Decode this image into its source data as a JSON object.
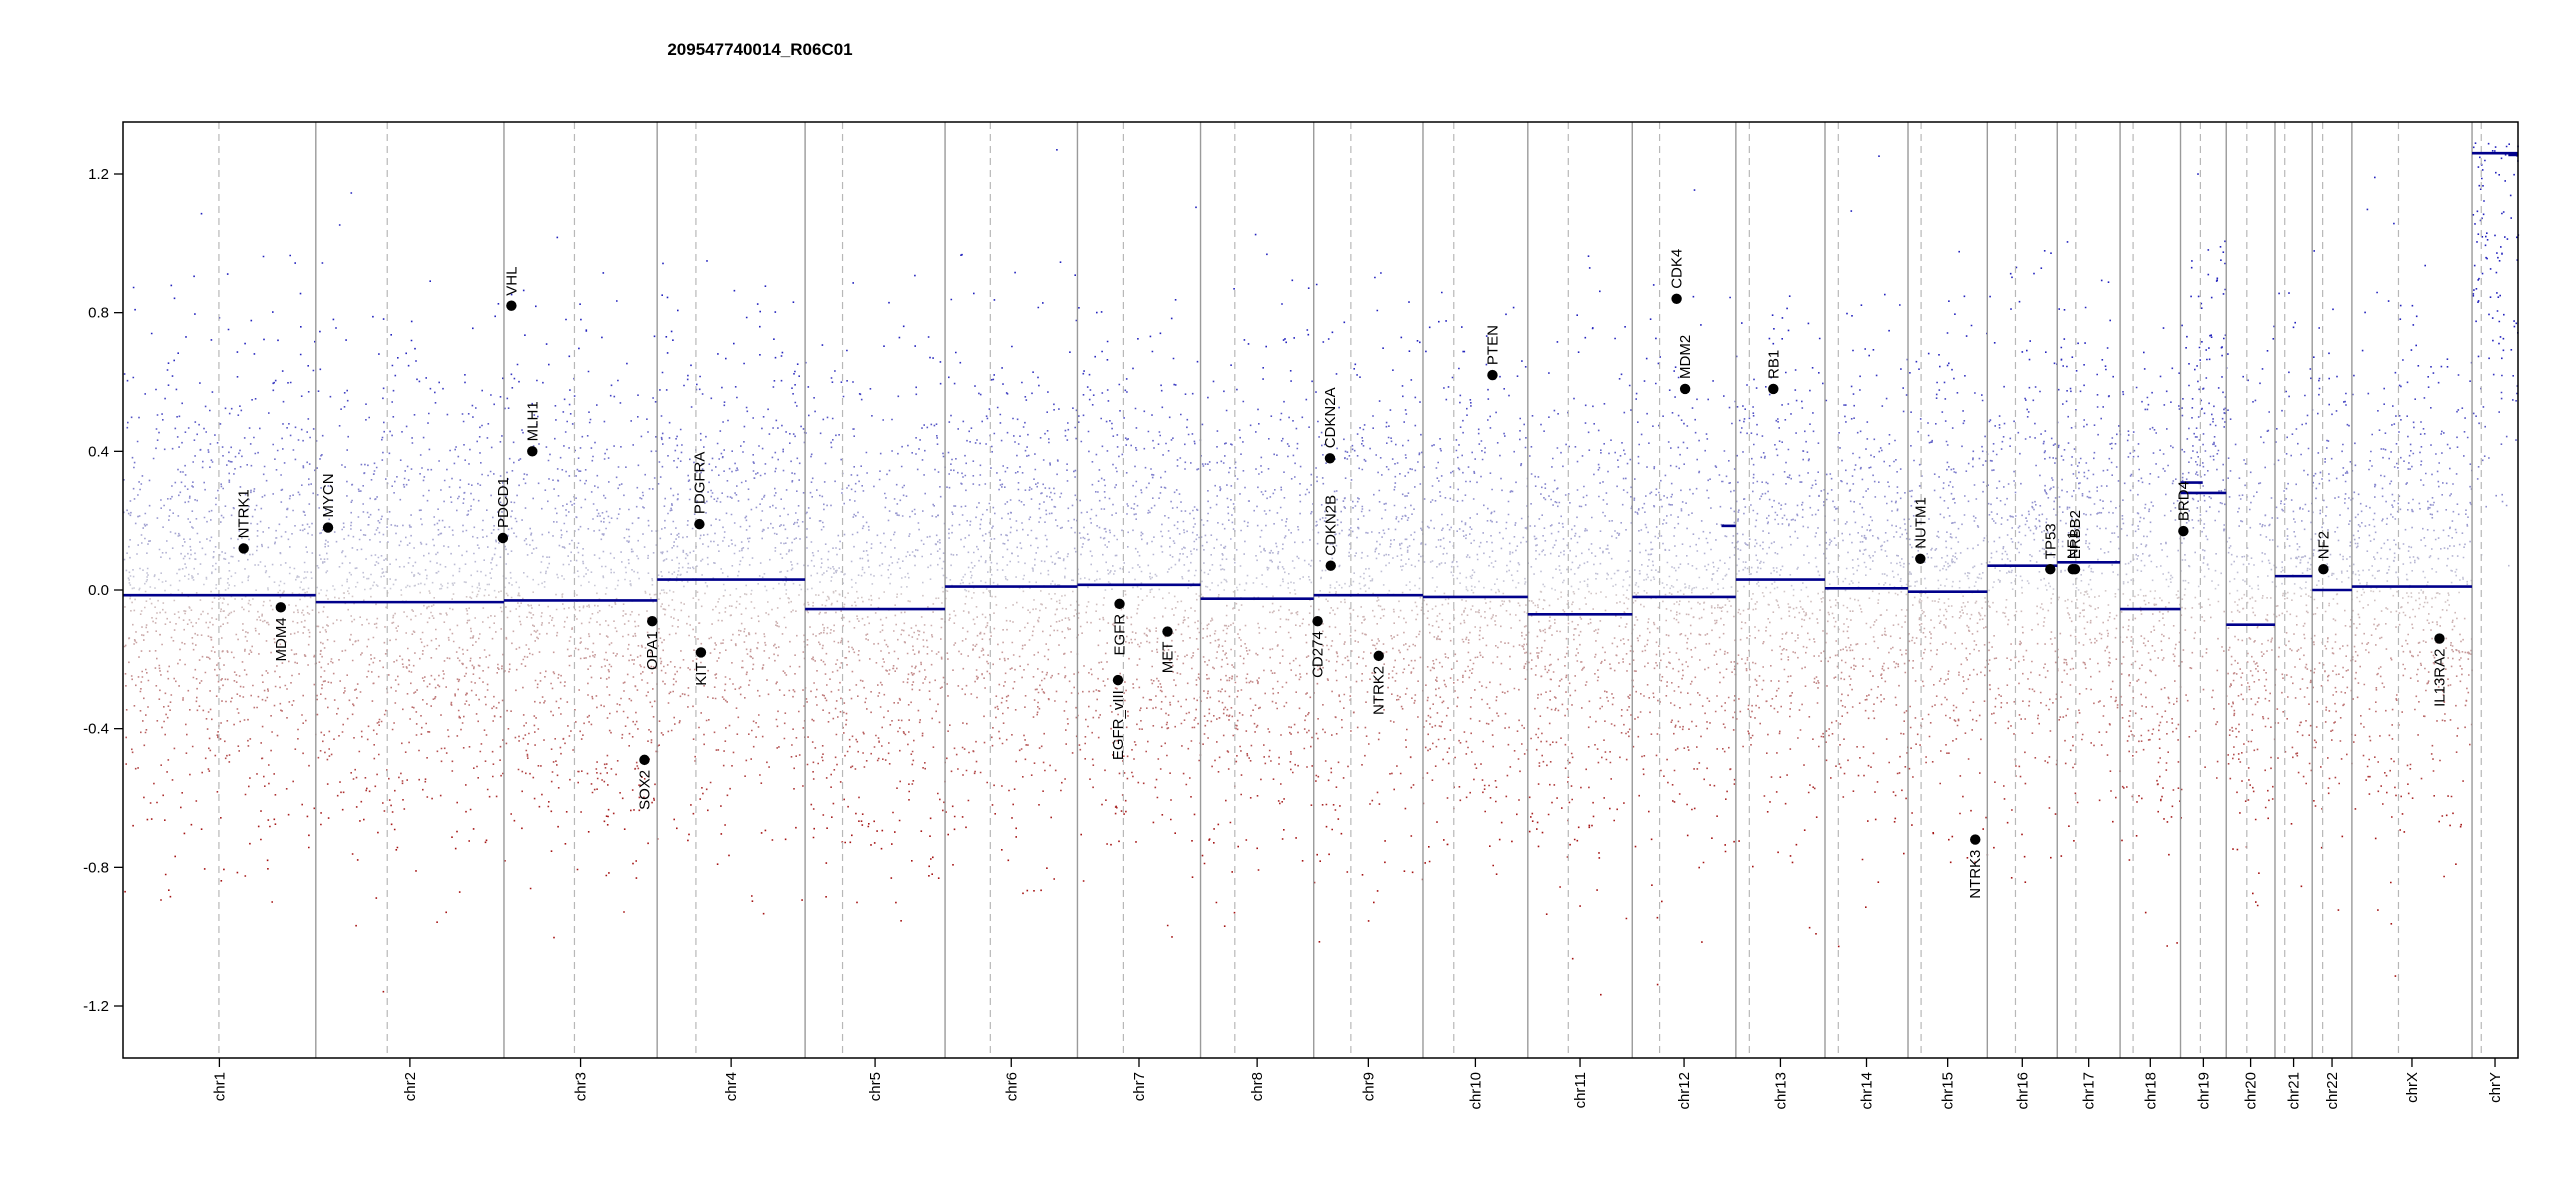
{
  "chart_data": {
    "type": "scatter",
    "title": "209547740014_R06C01",
    "xlabel": "",
    "ylabel": "",
    "ylim": [
      -1.35,
      1.35
    ],
    "y_ticks": [
      1.2,
      0.8,
      0.4,
      0.0,
      -0.4,
      -0.8,
      -1.2
    ],
    "y_tick_labels": [
      "1.2",
      "0.8",
      "0.4",
      "0.0",
      "-0.4",
      "-0.8",
      "-1.2"
    ],
    "colors": {
      "gain": "#2b2bb3",
      "loss": "#9e1a1a",
      "neutral": "#b0b0b0",
      "segment": "#00008b",
      "gene_point": "#000000"
    },
    "chromosomes": [
      {
        "name": "chr1",
        "start": 0.0,
        "end": 249.2,
        "centromere": 124.0,
        "segment": -0.015
      },
      {
        "name": "chr2",
        "start": 249.2,
        "end": 492.4,
        "centromere": 341.5,
        "segment": -0.035
      },
      {
        "name": "chr3",
        "start": 492.4,
        "end": 690.4,
        "centromere": 583.5,
        "segment": -0.03
      },
      {
        "name": "chr4",
        "start": 690.4,
        "end": 881.6,
        "centromere": 740.5,
        "segment": 0.03
      },
      {
        "name": "chr5",
        "start": 881.6,
        "end": 1062.5,
        "centromere": 930.0,
        "segment": -0.055
      },
      {
        "name": "chr6",
        "start": 1062.5,
        "end": 1233.6,
        "centromere": 1121.0,
        "segment": 0.01
      },
      {
        "name": "chr7",
        "start": 1233.6,
        "end": 1392.7,
        "centromere": 1293.0,
        "segment": 0.015
      },
      {
        "name": "chr8",
        "start": 1392.7,
        "end": 1539.0,
        "centromere": 1437.0,
        "segment": -0.025
      },
      {
        "name": "chr9",
        "start": 1539.0,
        "end": 1680.2,
        "centromere": 1587.0,
        "segment": -0.015
      },
      {
        "name": "chr10",
        "start": 1680.2,
        "end": 1815.7,
        "centromere": 1720.0,
        "segment": -0.02
      },
      {
        "name": "chr11",
        "start": 1815.7,
        "end": 1950.7,
        "centromere": 1868.0,
        "segment": -0.07
      },
      {
        "name": "chr12",
        "start": 1950.7,
        "end": 2084.6,
        "centromere": 1986.0,
        "segment": -0.02
      },
      {
        "name": "chr13",
        "start": 2084.6,
        "end": 2199.8,
        "centromere": 2102.0,
        "segment": 0.03
      },
      {
        "name": "chr14",
        "start": 2199.8,
        "end": 2307.1,
        "centromere": 2217.0,
        "segment": 0.005
      },
      {
        "name": "chr15",
        "start": 2307.1,
        "end": 2409.6,
        "centromere": 2324.0,
        "segment": -0.005
      },
      {
        "name": "chr16",
        "start": 2409.6,
        "end": 2500.0,
        "centromere": 2446.0,
        "segment": 0.07
      },
      {
        "name": "chr17",
        "start": 2500.0,
        "end": 2581.2,
        "centromere": 2524.0,
        "segment": 0.08
      },
      {
        "name": "chr18",
        "start": 2581.2,
        "end": 2659.3,
        "centromere": 2598.0,
        "segment": -0.055
      },
      {
        "name": "chr19",
        "start": 2659.3,
        "end": 2718.4,
        "centromere": 2685.0,
        "segment": 0.28
      },
      {
        "name": "chr20",
        "start": 2718.4,
        "end": 2781.4,
        "centromere": 2745.0,
        "segment": -0.1
      },
      {
        "name": "chr21",
        "start": 2781.4,
        "end": 2829.5,
        "centromere": 2794.0,
        "segment": 0.04
      },
      {
        "name": "chr22",
        "start": 2829.5,
        "end": 2880.8,
        "centromere": 2843.0,
        "segment": 0.0
      },
      {
        "name": "chrX",
        "start": 2880.8,
        "end": 3036.1,
        "centromere": 2941.0,
        "segment": 0.01
      },
      {
        "name": "chrY",
        "start": 3036.1,
        "end": 3095.5,
        "centromere": 3048.0,
        "segment": 1.26
      }
    ],
    "extra_segments": [
      {
        "start": 2066.0,
        "end": 2084.6,
        "value": 0.185
      },
      {
        "start": 2659.3,
        "end": 2688.0,
        "value": 0.31
      },
      {
        "start": 3083.0,
        "end": 3095.5,
        "value": 1.255
      }
    ],
    "genes": [
      {
        "name": "NTRK1",
        "x": 156.0,
        "y": 0.12
      },
      {
        "name": "MDM4",
        "x": 204.0,
        "y": -0.05
      },
      {
        "name": "MYCN",
        "x": 265.0,
        "y": 0.18
      },
      {
        "name": "PDCD1",
        "x": 491.0,
        "y": 0.15
      },
      {
        "name": "VHL",
        "x": 502.0,
        "y": 0.82
      },
      {
        "name": "MLH1",
        "x": 529.0,
        "y": 0.4
      },
      {
        "name": "SOX2",
        "x": 674.0,
        "y": -0.49
      },
      {
        "name": "OPA1",
        "x": 684.0,
        "y": -0.09
      },
      {
        "name": "PDGFRA",
        "x": 745.0,
        "y": 0.19
      },
      {
        "name": "KIT",
        "x": 747.0,
        "y": -0.18
      },
      {
        "name": "EGFR_vIII",
        "x": 1286.0,
        "y": -0.26
      },
      {
        "name": "EGFR",
        "x": 1288.0,
        "y": -0.04
      },
      {
        "name": "MET",
        "x": 1350.0,
        "y": -0.12
      },
      {
        "name": "CD274",
        "x": 1544.0,
        "y": -0.09
      },
      {
        "name": "CDKN2A",
        "x": 1560.0,
        "y": 0.38
      },
      {
        "name": "CDKN2B",
        "x": 1561.0,
        "y": 0.07
      },
      {
        "name": "NTRK2",
        "x": 1623.0,
        "y": -0.19
      },
      {
        "name": "PTEN",
        "x": 1770.0,
        "y": 0.62
      },
      {
        "name": "MDM2",
        "x": 2019.0,
        "y": 0.58
      },
      {
        "name": "CDK4",
        "x": 2008.0,
        "y": 0.84
      },
      {
        "name": "RB1",
        "x": 2133.0,
        "y": 0.58
      },
      {
        "name": "NUTM1",
        "x": 2323.0,
        "y": 0.09
      },
      {
        "name": "NTRK3",
        "x": 2394.0,
        "y": -0.72
      },
      {
        "name": "TP53",
        "x": 2491.0,
        "y": 0.06
      },
      {
        "name": "NF1",
        "x": 2520.0,
        "y": 0.06
      },
      {
        "name": "ERBB2",
        "x": 2523.0,
        "y": 0.06
      },
      {
        "name": "BRD4",
        "x": 2663.0,
        "y": 0.17
      },
      {
        "name": "NF2",
        "x": 2844.0,
        "y": 0.06
      },
      {
        "name": "IL13RA2",
        "x": 2994.0,
        "y": -0.14
      }
    ]
  }
}
